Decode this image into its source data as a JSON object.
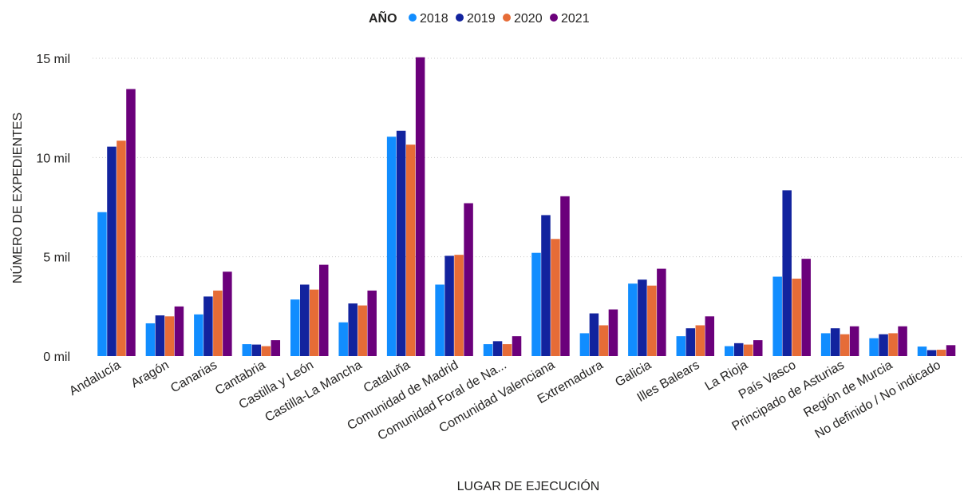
{
  "legend": {
    "title": "AÑO"
  },
  "chart_data": {
    "type": "bar",
    "xlabel": "LUGAR DE EJECUCIÓN",
    "ylabel": "NÚMERO DE EXPEDIENTES",
    "ylim": [
      0,
      15000
    ],
    "yticks": [
      {
        "value": 0,
        "label": "0 mil"
      },
      {
        "value": 5000,
        "label": "5 mil"
      },
      {
        "value": 10000,
        "label": "10 mil"
      },
      {
        "value": 15000,
        "label": "15 mil"
      }
    ],
    "grid": true,
    "legend_position": "top-center",
    "categories": [
      "Andalucía",
      "Aragón",
      "Canarias",
      "Cantabria",
      "Castilla y León",
      "Castilla-La Mancha",
      "Cataluña",
      "Comunidad de Madrid",
      "Comunidad Foral de Na...",
      "Comunidad Valenciana",
      "Extremadura",
      "Galicia",
      "Illes Balears",
      "La Rioja",
      "País Vasco",
      "Principado de Asturias",
      "Región de Murcia",
      "No definido / No indicado"
    ],
    "series": [
      {
        "name": "2018",
        "color": "#118DFF",
        "values": [
          7250,
          1650,
          2100,
          600,
          2850,
          1700,
          11050,
          3600,
          600,
          5200,
          1150,
          3650,
          1000,
          500,
          4000,
          1150,
          900,
          480
        ]
      },
      {
        "name": "2019",
        "color": "#12239E",
        "values": [
          10550,
          2050,
          3000,
          580,
          3600,
          2650,
          11350,
          5050,
          750,
          7100,
          2150,
          3850,
          1400,
          650,
          8350,
          1400,
          1100,
          300
        ]
      },
      {
        "name": "2020",
        "color": "#E66C37",
        "values": [
          10850,
          2000,
          3300,
          500,
          3350,
          2550,
          10650,
          5100,
          600,
          5900,
          1550,
          3550,
          1550,
          580,
          3900,
          1100,
          1150,
          320
        ]
      },
      {
        "name": "2021",
        "color": "#6B007B",
        "values": [
          13450,
          2500,
          4250,
          800,
          4600,
          3300,
          15050,
          7700,
          1000,
          8050,
          2350,
          4400,
          2000,
          800,
          4900,
          1500,
          1500,
          550
        ]
      }
    ]
  }
}
